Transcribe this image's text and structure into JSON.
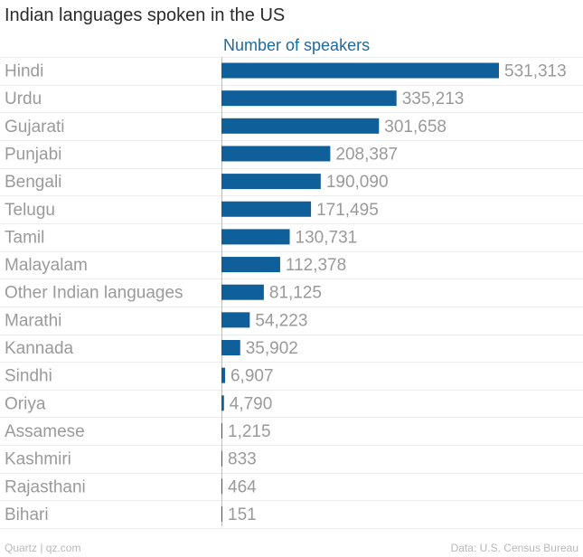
{
  "chart_data": {
    "type": "bar",
    "orientation": "horizontal",
    "title": "Indian languages spoken in the US",
    "series_label": "Number of speakers",
    "categories": [
      "Hindi",
      "Urdu",
      "Gujarati",
      "Punjabi",
      "Bengali",
      "Telugu",
      "Tamil",
      "Malayalam",
      "Other Indian languages",
      "Marathi",
      "Kannada",
      "Sindhi",
      "Oriya",
      "Assamese",
      "Kashmiri",
      "Rajasthani",
      "Bihari"
    ],
    "values": [
      531313,
      335213,
      301658,
      208387,
      190090,
      171495,
      130731,
      112378,
      81125,
      54223,
      35902,
      6907,
      4790,
      1215,
      833,
      464,
      151
    ],
    "value_labels": [
      "531,313",
      "335,213",
      "301,658",
      "208,387",
      "190,090",
      "171,495",
      "130,731",
      "112,378",
      "81,125",
      "54,223",
      "35,902",
      "6,907",
      "4,790",
      "1,215",
      "833",
      "464",
      "151"
    ],
    "xlim": [
      0,
      531313
    ],
    "bar_color": "#0f5f9a",
    "label_color": "#9a9a9a",
    "header_color": "#1e6a9c",
    "grid": true
  },
  "footer": {
    "source_left": "Quartz | qz.com",
    "source_right": "Data: U.S. Census Bureau"
  }
}
